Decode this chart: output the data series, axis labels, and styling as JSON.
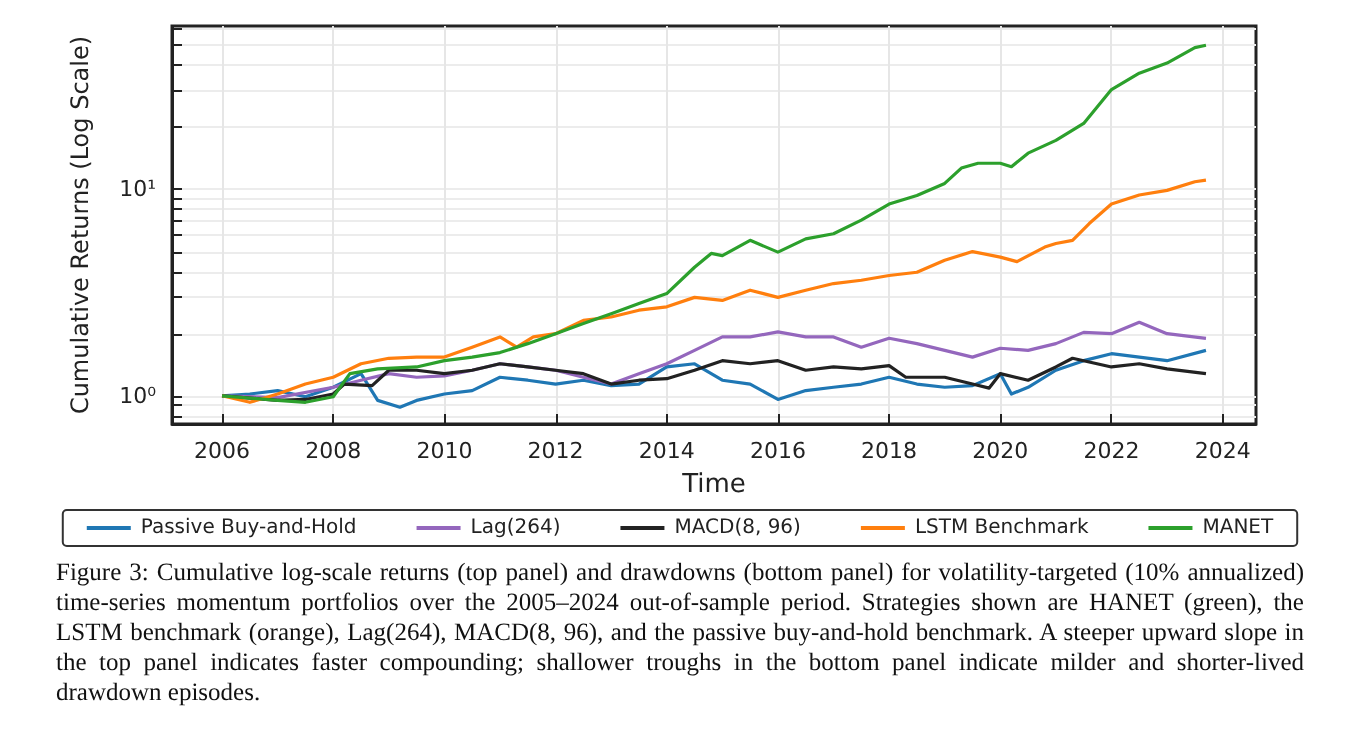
{
  "chart_data": {
    "type": "line",
    "xlabel": "Time",
    "ylabel": "Cumulative Returns (Log Scale)",
    "log": "y",
    "grid": true,
    "legend": "bottom",
    "line_style": "solid",
    "marker": "none",
    "xlim": [
      2005.1,
      2024.6
    ],
    "xticks": [
      2006,
      2008,
      2010,
      2012,
      2014,
      2016,
      2018,
      2020,
      2022,
      2024
    ],
    "ylim": [
      0.73,
      62
    ],
    "yticks": [
      {
        "value": 0.8,
        "label": null
      },
      {
        "value": 0.9,
        "label": null
      },
      {
        "value": 1,
        "label": "10⁰"
      },
      {
        "value": 2,
        "label": null
      },
      {
        "value": 3,
        "label": null
      },
      {
        "value": 4,
        "label": null
      },
      {
        "value": 5,
        "label": null
      },
      {
        "value": 6,
        "label": null
      },
      {
        "value": 7,
        "label": null
      },
      {
        "value": 8,
        "label": null
      },
      {
        "value": 9,
        "label": null
      },
      {
        "value": 10,
        "label": "10¹"
      },
      {
        "value": 20,
        "label": null
      },
      {
        "value": 30,
        "label": null
      },
      {
        "value": 40,
        "label": null
      },
      {
        "value": 50,
        "label": null
      },
      {
        "value": 60,
        "label": null
      }
    ],
    "series": [
      {
        "name": "Passive Buy-and-Hold",
        "color": "#1f77b4",
        "x": [
          2006,
          2006.5,
          2007,
          2007.5,
          2008,
          2008.5,
          2008.8,
          2009.2,
          2009.5,
          2010,
          2010.5,
          2011,
          2011.5,
          2012,
          2012.5,
          2013,
          2013.5,
          2014,
          2014.5,
          2015,
          2015.5,
          2016,
          2016.5,
          2017,
          2017.5,
          2018,
          2018.5,
          2019,
          2019.5,
          2020,
          2020.2,
          2020.5,
          2021,
          2021.5,
          2022,
          2022.5,
          2023,
          2023.7
        ],
        "values": [
          1.0,
          1.02,
          1.06,
          0.99,
          1.1,
          1.28,
          0.95,
          0.88,
          0.95,
          1.02,
          1.06,
          1.23,
          1.19,
          1.14,
          1.19,
          1.12,
          1.14,
          1.38,
          1.43,
          1.19,
          1.14,
          0.96,
          1.06,
          1.1,
          1.14,
          1.23,
          1.14,
          1.1,
          1.12,
          1.28,
          1.02,
          1.1,
          1.33,
          1.48,
          1.6,
          1.54,
          1.48,
          1.66
        ]
      },
      {
        "name": "Lag(264)",
        "color": "#9467bd",
        "x": [
          2006,
          2007,
          2008,
          2008.5,
          2009,
          2009.5,
          2010,
          2010.5,
          2011,
          2011.5,
          2012,
          2012.5,
          2013,
          2013.5,
          2014,
          2014.5,
          2015,
          2015.5,
          2016,
          2016.5,
          2017,
          2017.5,
          2018,
          2018.5,
          2019,
          2019.5,
          2020,
          2020.5,
          2021,
          2021.5,
          2022,
          2022.5,
          2023,
          2023.7
        ],
        "values": [
          1.0,
          0.98,
          1.1,
          1.19,
          1.28,
          1.23,
          1.25,
          1.33,
          1.43,
          1.38,
          1.33,
          1.23,
          1.14,
          1.28,
          1.43,
          1.66,
          1.93,
          1.93,
          2.04,
          1.93,
          1.93,
          1.72,
          1.9,
          1.79,
          1.66,
          1.54,
          1.7,
          1.66,
          1.79,
          2.03,
          2.0,
          2.27,
          2.0,
          1.9
        ]
      },
      {
        "name": "MACD(8, 96)",
        "color": "#222222",
        "x": [
          2006,
          2007,
          2007.5,
          2008,
          2008.2,
          2008.7,
          2009,
          2009.5,
          2010,
          2010.5,
          2011,
          2011.5,
          2012,
          2012.5,
          2013,
          2013.5,
          2014,
          2014.5,
          2015,
          2015.5,
          2016,
          2016.5,
          2017,
          2017.5,
          2018,
          2018.3,
          2019,
          2019.5,
          2019.8,
          2020,
          2020.5,
          2021,
          2021.3,
          2022,
          2022.5,
          2023,
          2023.7
        ],
        "values": [
          1.0,
          0.95,
          0.96,
          1.02,
          1.14,
          1.12,
          1.33,
          1.33,
          1.28,
          1.33,
          1.43,
          1.38,
          1.33,
          1.28,
          1.14,
          1.19,
          1.21,
          1.33,
          1.48,
          1.43,
          1.48,
          1.33,
          1.38,
          1.35,
          1.4,
          1.23,
          1.23,
          1.14,
          1.09,
          1.28,
          1.19,
          1.38,
          1.52,
          1.38,
          1.43,
          1.35,
          1.28
        ]
      },
      {
        "name": "LSTM Benchmark",
        "color": "#ff7f0e",
        "x": [
          2006,
          2006.5,
          2007,
          2007.5,
          2008,
          2008.5,
          2009,
          2009.5,
          2010,
          2010.5,
          2011,
          2011.3,
          2011.6,
          2012,
          2012.5,
          2013,
          2013.5,
          2014,
          2014.5,
          2015,
          2015.5,
          2016,
          2016.5,
          2017,
          2017.5,
          2018,
          2018.5,
          2019,
          2019.5,
          2020,
          2020.3,
          2020.8,
          2021,
          2021.3,
          2021.6,
          2022,
          2022.5,
          2023,
          2023.5,
          2023.7
        ],
        "values": [
          1.0,
          0.93,
          1.02,
          1.14,
          1.23,
          1.43,
          1.52,
          1.54,
          1.54,
          1.72,
          1.93,
          1.72,
          1.93,
          2.0,
          2.32,
          2.41,
          2.6,
          2.7,
          3.0,
          2.9,
          3.25,
          3.0,
          3.25,
          3.5,
          3.63,
          3.83,
          3.97,
          4.54,
          5.0,
          4.7,
          4.47,
          5.26,
          5.47,
          5.67,
          6.84,
          8.5,
          9.4,
          9.9,
          10.9,
          11.1
        ]
      },
      {
        "name": "MANET",
        "color": "#2ca02c",
        "x": [
          2006,
          2007,
          2007.5,
          2008,
          2008.3,
          2008.8,
          2009.5,
          2010,
          2010.5,
          2011,
          2011.5,
          2012,
          2012.5,
          2013,
          2013.5,
          2014,
          2014.5,
          2014.8,
          2015,
          2015.5,
          2016,
          2016.5,
          2017,
          2017.5,
          2018,
          2018.5,
          2019,
          2019.3,
          2019.6,
          2020,
          2020.2,
          2020.5,
          2021,
          2021.5,
          2022,
          2022.5,
          2023,
          2023.5,
          2023.7
        ],
        "values": [
          1.0,
          0.95,
          0.93,
          0.99,
          1.28,
          1.35,
          1.38,
          1.48,
          1.54,
          1.62,
          1.79,
          2.0,
          2.24,
          2.5,
          2.8,
          3.13,
          4.2,
          4.9,
          4.78,
          5.67,
          4.97,
          5.76,
          6.1,
          7.1,
          8.5,
          9.35,
          10.7,
          12.7,
          13.4,
          13.4,
          12.9,
          15,
          17.3,
          20.9,
          30.5,
          36.6,
          41,
          48.7,
          50
        ]
      }
    ],
    "annotations": [
      "Figure 3: Cumulative log-scale returns (top panel) and drawdowns (bottom panel) for volatility-targeted (10% annualized) time-series momentum portfolios over the 2005–2024 out-of-sample period.  Strategies shown are HANET (green), the LSTM benchmark (orange), Lag(264), MACD(8, 96), and the passive buy-and-hold benchmark. A steeper upward slope in the top panel indicates faster compounding; shallower troughs in the bottom panel indicate milder and shorter-lived drawdown episodes."
    ]
  }
}
